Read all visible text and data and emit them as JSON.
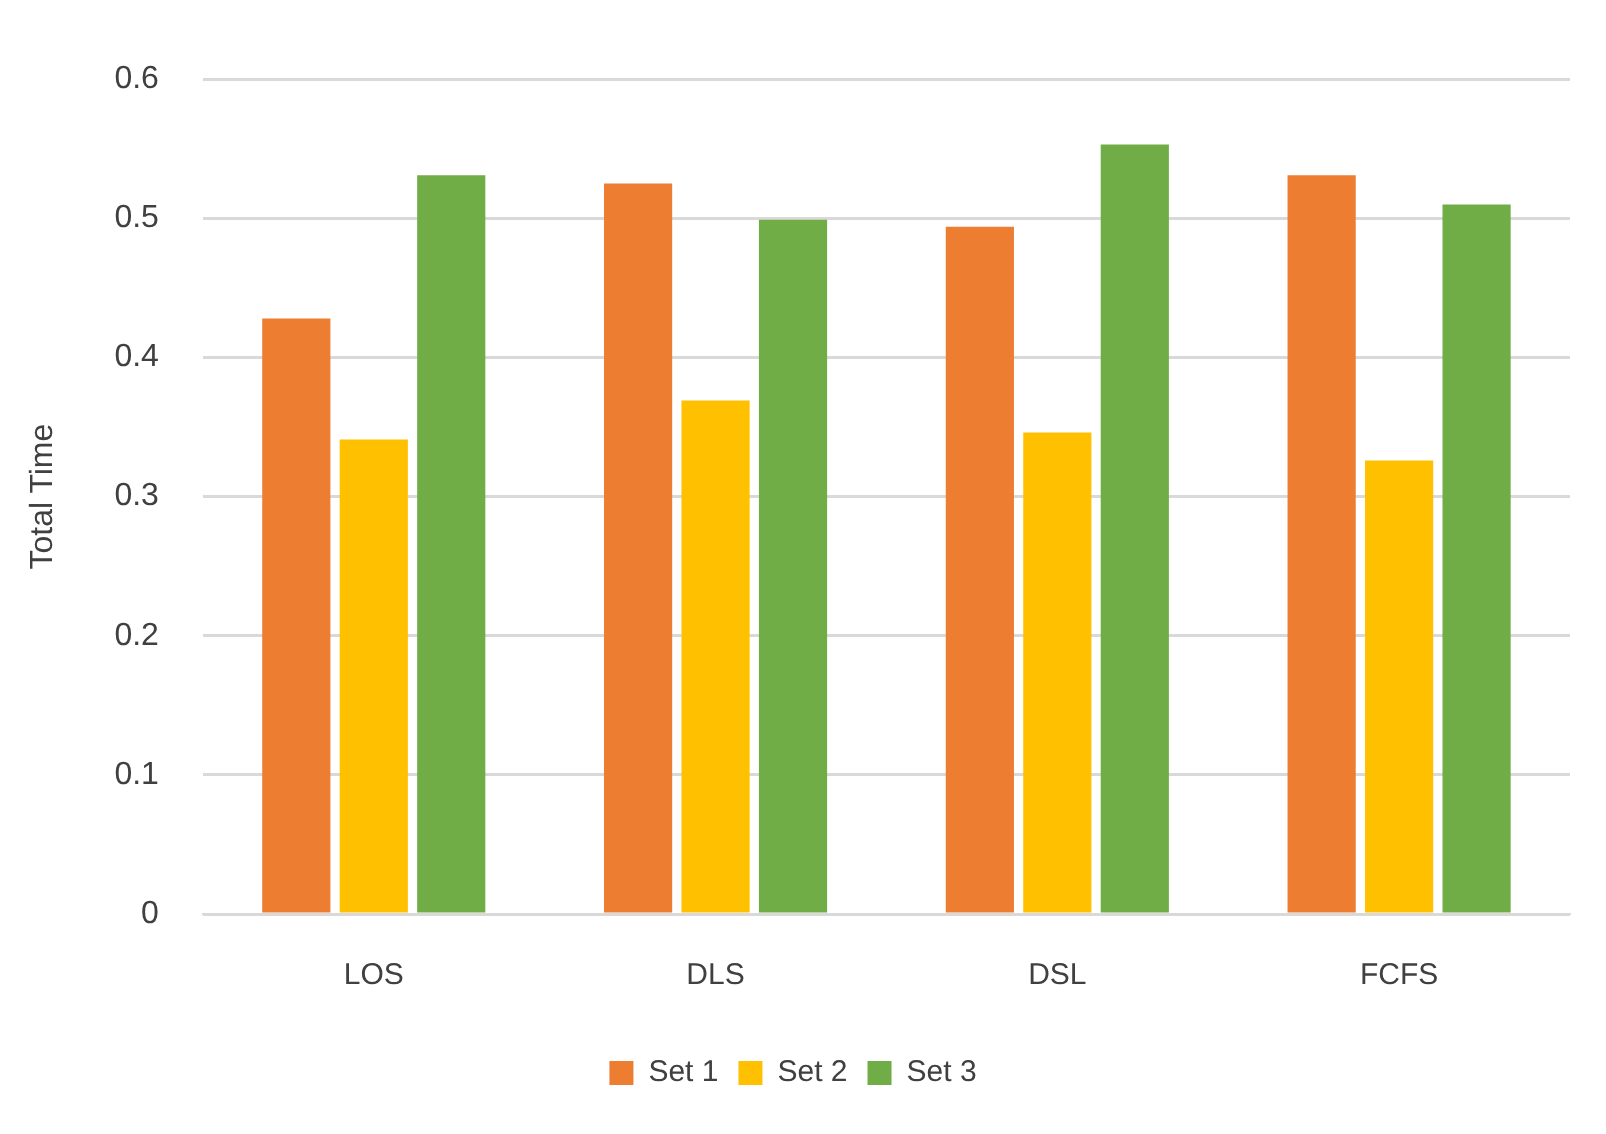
{
  "chart_data": {
    "type": "bar",
    "ylabel": "Total Time",
    "categories": [
      "LOS",
      "DLS",
      "DSL",
      "FCFS"
    ],
    "series": [
      {
        "name": "Set 1",
        "color": "#ed7d31",
        "values": [
          0.428,
          0.525,
          0.494,
          0.531
        ]
      },
      {
        "name": "Set 2",
        "color": "#ffc000",
        "values": [
          0.341,
          0.369,
          0.346,
          0.326
        ]
      },
      {
        "name": "Set 3",
        "color": "#70ad47",
        "values": [
          0.531,
          0.499,
          0.553,
          0.51
        ]
      }
    ],
    "ylim": [
      0,
      0.6
    ],
    "yticks": [
      0,
      0.1,
      0.2,
      0.3,
      0.4,
      0.5,
      0.6
    ],
    "grid": "y",
    "legend": "bottom"
  }
}
